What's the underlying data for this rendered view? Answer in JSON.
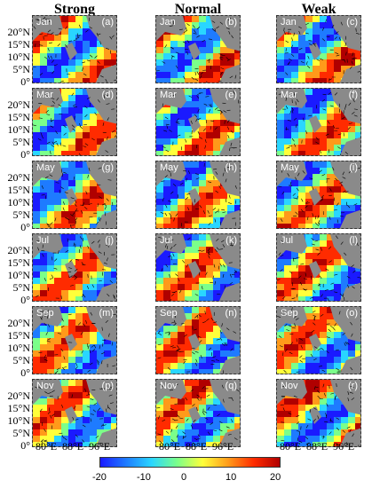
{
  "columns": [
    "Strong",
    "Normal",
    "Weak"
  ],
  "months": [
    "Jan",
    "Mar",
    "May",
    "Jul",
    "Sep",
    "Nov"
  ],
  "panel_labels": [
    [
      "(a)",
      "(b)",
      "(c)"
    ],
    [
      "(d)",
      "(e)",
      "(f)"
    ],
    [
      "(g)",
      "(h)",
      "(i)"
    ],
    [
      "(j)",
      "(k)",
      "(l)"
    ],
    [
      "(m)",
      "(n)",
      "(o)"
    ],
    [
      "(p)",
      "(q)",
      "(r)"
    ]
  ],
  "y_ticks": [
    "20°N",
    "15°N",
    "10°N",
    "5°N",
    "0°"
  ],
  "x_ticks": [
    "80°E",
    "88°E",
    "96°E"
  ],
  "colorbar_ticks": [
    "-20",
    "-10",
    "0",
    "10",
    "20"
  ],
  "colors": {
    "low": "#1a1aff",
    "mid": "#ffff3a",
    "high": "#b00000",
    "land": "#8a8a8a"
  }
}
